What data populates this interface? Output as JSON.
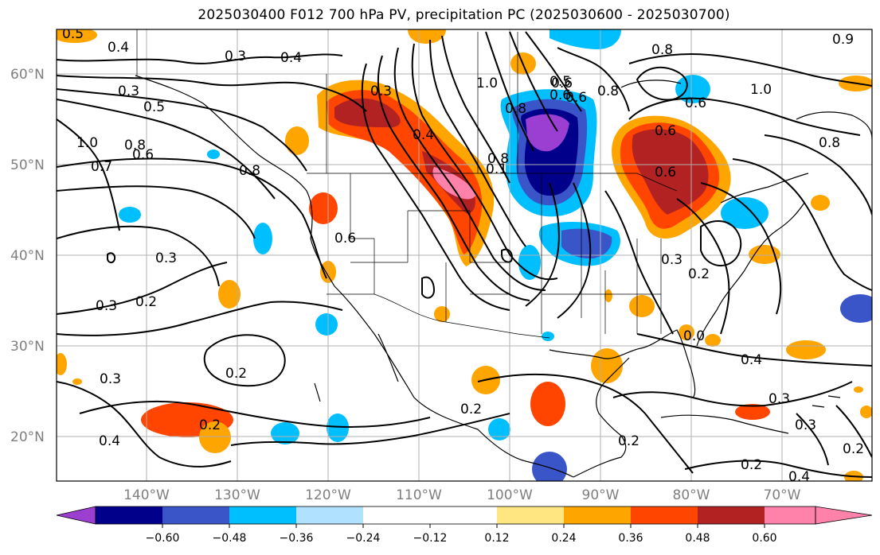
{
  "title": "2025030400 F012 700 hPa PV, precipitation PC (2025030600 - 2025030700)",
  "map": {
    "lat_labels": [
      "60°N",
      "50°N",
      "40°N",
      "30°N",
      "20°N"
    ],
    "lon_labels": [
      "140°W",
      "130°W",
      "120°W",
      "110°W",
      "100°W",
      "90°W",
      "80°W",
      "70°W"
    ]
  },
  "colorbar": {
    "colors": [
      "#9b3fd2",
      "#00008b",
      "#3a55c8",
      "#00bfff",
      "#b0e2ff",
      "#ffffff",
      "#ffe680",
      "#ffa500",
      "#ff4500",
      "#b22222",
      "#ff82ab"
    ],
    "tick_labels": [
      "−0.60",
      "−0.48",
      "−0.36",
      "−0.24",
      "−0.12",
      "0.12",
      "0.24",
      "0.36",
      "0.48",
      "0.60"
    ]
  },
  "contour_labels": [
    "0.5",
    "0.4",
    "0.3",
    "0.4",
    "0.3",
    "0.5",
    "1.0",
    "0.8",
    "0.6",
    "0.7",
    "0.8",
    "0.6",
    "0.3",
    "0.4",
    "0.8",
    "0.1",
    "0.6",
    "0.8",
    "0.6",
    "0.6",
    "1.0",
    "0.6",
    "0.3",
    "0.2",
    "0.3",
    "0.2",
    "0.2",
    "0.3",
    "0.2",
    "0.4",
    "0.2",
    "0.2",
    "0.4",
    "0.3",
    "0.3",
    "0.2",
    "0.4",
    "0.2",
    "0.5",
    "0.6",
    "0.8",
    "1.0",
    "0.8",
    "0.6",
    "0.8",
    "0.9",
    "0.0",
    "0.3"
  ]
}
